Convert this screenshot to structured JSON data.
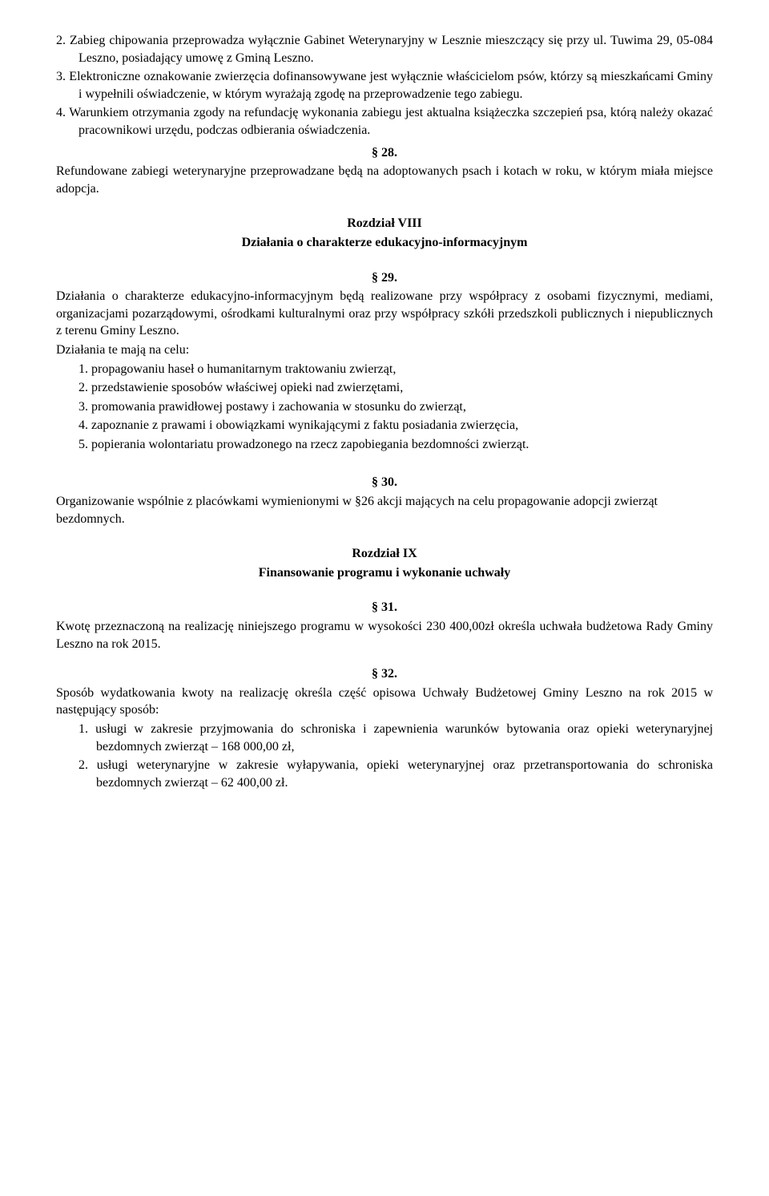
{
  "item2": {
    "num": "2.",
    "text": "Zabieg chipowania przeprowadza wyłącznie Gabinet Weterynaryjny w Lesznie mieszczący się przy ul. Tuwima 29, 05-084 Leszno, posiadający umowę z Gminą Leszno."
  },
  "item3": {
    "num": "3.",
    "text": "Elektroniczne oznakowanie zwierzęcia dofinansowywane jest wyłącznie właścicielom psów, którzy są mieszkańcami Gminy i wypełnili oświadczenie, w którym wyrażają zgodę na przeprowadzenie tego zabiegu."
  },
  "item4": {
    "num": "4.",
    "text": "Warunkiem otrzymania zgody na refundację wykonania zabiegu jest aktualna książeczka szczepień psa, którą należy okazać pracownikowi urzędu, podczas odbierania oświadczenia."
  },
  "s28": {
    "num": "§ 28.",
    "text": "Refundowane zabiegi weterynaryjne przeprowadzane będą na adoptowanych psach i kotach w roku, w którym miała miejsce adopcja."
  },
  "ch8": {
    "title": "Rozdział VIII",
    "subtitle": "Działania o charakterze edukacyjno-informacyjnym"
  },
  "s29": {
    "num": "§ 29.",
    "intro": "Działania o charakterze edukacyjno-informacyjnym będą realizowane przy współpracy z osobami fizycznymi, mediami, organizacjami pozarządowymi, ośrodkami kulturalnymi oraz przy współpracy szkółi przedszkoli publicznych i niepublicznych z terenu Gminy Leszno.",
    "aim": "Działania te mają na celu:",
    "items": [
      {
        "num": "1.",
        "text": "propagowaniu haseł o humanitarnym traktowaniu zwierząt,"
      },
      {
        "num": "2.",
        "text": "przedstawienie sposobów właściwej opieki nad zwierzętami,"
      },
      {
        "num": "3.",
        "text": "promowania prawidłowej postawy i zachowania w stosunku do zwierząt,"
      },
      {
        "num": "4.",
        "text": "zapoznanie z prawami i obowiązkami wynikającymi z faktu posiadania zwierzęcia,"
      },
      {
        "num": "5.",
        "text": "popierania wolontariatu prowadzonego na rzecz zapobiegania bezdomności zwierząt."
      }
    ]
  },
  "s30": {
    "num": "§ 30.",
    "text": "Organizowanie wspólnie z placówkami wymienionymi w §26 akcji mających na celu propagowanie adopcji zwierząt bezdomnych."
  },
  "ch9": {
    "title": "Rozdział IX",
    "subtitle": "Finansowanie programu i wykonanie uchwały"
  },
  "s31": {
    "num": "§ 31.",
    "text": "Kwotę przeznaczoną na realizację niniejszego programu w wysokości 230 400,00zł określa uchwała budżetowa Rady Gminy Leszno na rok 2015."
  },
  "s32": {
    "num": "§ 32.",
    "intro": "Sposób wydatkowania kwoty na realizację określa część opisowa Uchwały Budżetowej Gminy Leszno na rok 2015 w następujący sposób:",
    "items": [
      {
        "num": "1.",
        "text": "usługi w zakresie przyjmowania do schroniska i zapewnienia warunków bytowania oraz opieki weterynaryjnej bezdomnych zwierząt – 168 000,00 zł,"
      },
      {
        "num": "2.",
        "text": "usługi weterynaryjne w zakresie wyłapywania, opieki weterynaryjnej oraz przetransportowania do schroniska bezdomnych zwierząt – 62 400,00 zł."
      }
    ]
  }
}
